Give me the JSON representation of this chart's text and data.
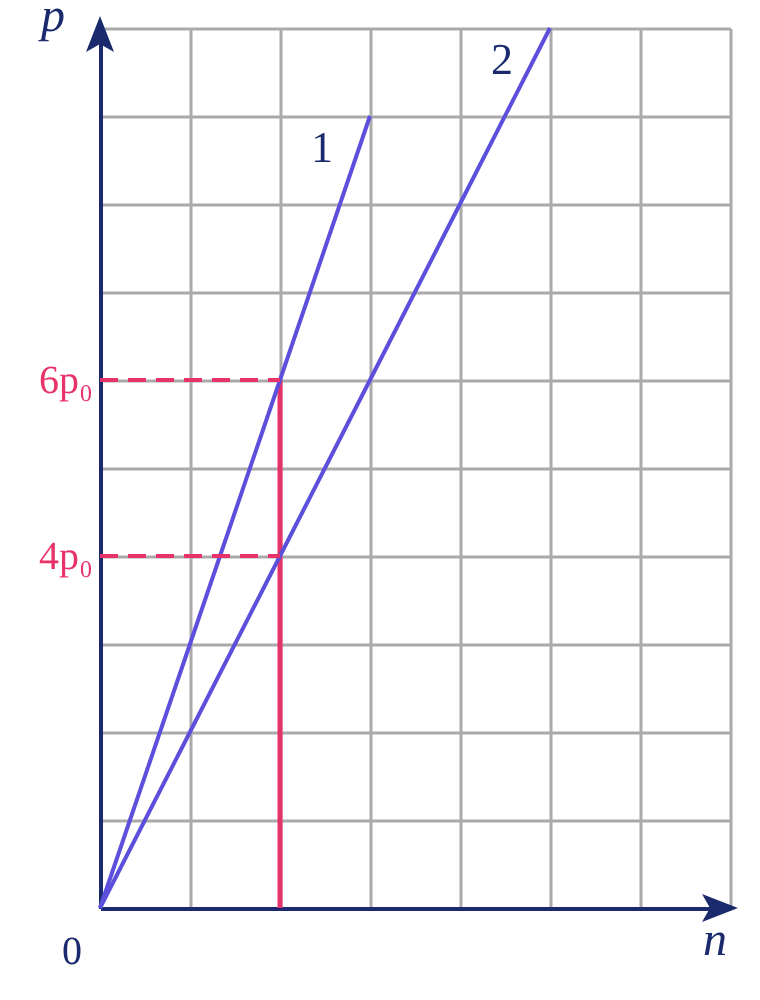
{
  "chart_data": {
    "type": "line",
    "xlabel": "n",
    "ylabel": "p",
    "categories": [
      null,
      null,
      null,
      null,
      null,
      null,
      null,
      null
    ],
    "ylim": [
      0,
      10
    ],
    "yticks": [
      {
        "value": 0,
        "label": null
      },
      {
        "value": 1,
        "label": null
      },
      {
        "value": 2,
        "label": null
      },
      {
        "value": 3,
        "label": null
      },
      {
        "value": 4,
        "label": "4p₀"
      },
      {
        "value": 5,
        "label": null
      },
      {
        "value": 6,
        "label": "6p₀"
      },
      {
        "value": 7,
        "label": null
      },
      {
        "value": 8,
        "label": null
      },
      {
        "value": 9,
        "label": null
      },
      {
        "value": 10,
        "label": null
      }
    ],
    "grid": true,
    "marker": "none",
    "series": [
      {
        "name": "1",
        "color": "#5b4fdc",
        "values": [
          0,
          3,
          6,
          9,
          null,
          null,
          null,
          null
        ],
        "line_style": "solid"
      },
      {
        "name": "2",
        "color": "#5b4fdc",
        "values": [
          0,
          2,
          4,
          6,
          8,
          10,
          null,
          null
        ],
        "line_style": "solid"
      },
      {
        "color": "#e8336a",
        "values": [
          6,
          6,
          6,
          null,
          null,
          null,
          null,
          null
        ],
        "line_style": "dashed"
      },
      {
        "color": "#e8336a",
        "values": [
          4,
          4,
          4,
          null,
          null,
          null,
          null,
          null
        ],
        "line_style": "dashed"
      },
      {
        "type": "bar",
        "color": "#e8336a",
        "values": [
          null,
          null,
          6,
          null,
          null,
          null,
          null,
          null
        ]
      }
    ],
    "annotations": [
      "0"
    ]
  }
}
